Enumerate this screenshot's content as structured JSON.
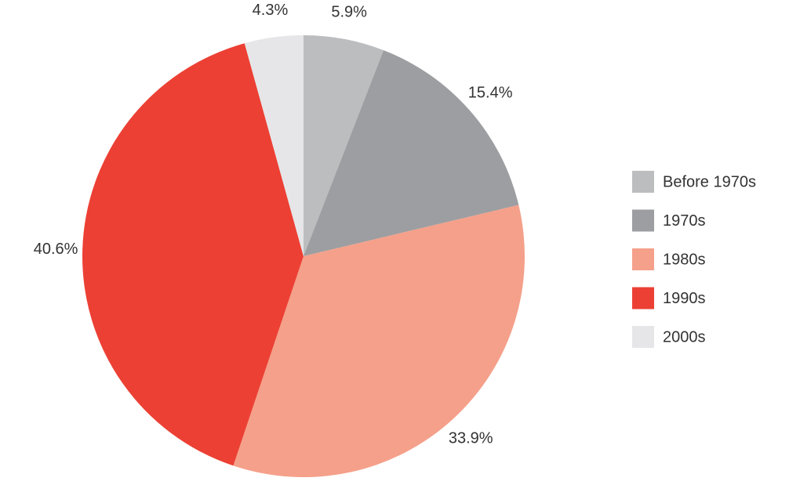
{
  "chart_data": {
    "type": "pie",
    "categories": [
      "Before 1970s",
      "1970s",
      "1980s",
      "1990s",
      "2000s"
    ],
    "values": [
      5.9,
      15.4,
      33.9,
      40.6,
      4.3
    ],
    "value_labels": [
      "5.9%",
      "15.4%",
      "33.9%",
      "40.6%",
      "4.3%"
    ],
    "colors": [
      "#bcbdbf",
      "#9d9ea1",
      "#f5a08a",
      "#ec4034",
      "#e6e6e8"
    ],
    "legend": "right"
  }
}
